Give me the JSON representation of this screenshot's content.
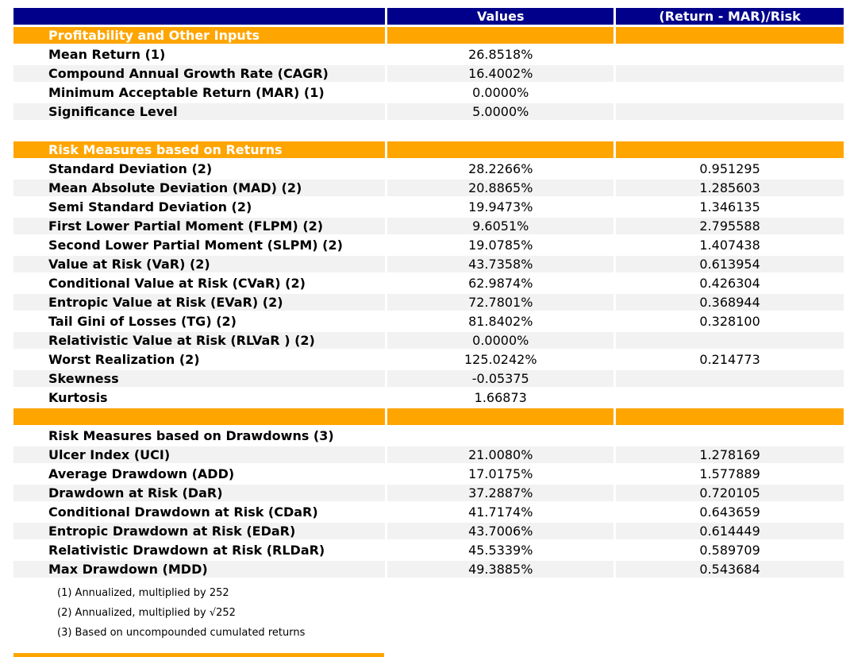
{
  "colors": {
    "header_bg": "#00008B",
    "header_text": "#ffffff",
    "section_bg": "#FFA500",
    "section_text": "#ffffff",
    "stripe_bg": "#F2F2F2",
    "body_text": "#000000"
  },
  "chart_data": {
    "type": "table",
    "title": "",
    "columns": [
      "",
      "Values",
      "(Return - MAR)/Risk"
    ],
    "rows": [
      {
        "t": "section",
        "label": "Profitability and Other Inputs",
        "value": "",
        "ratio": "",
        "shaded": false
      },
      {
        "t": "data",
        "label": "Mean Return (1)",
        "value": "26.8518%",
        "ratio": "",
        "shaded": false
      },
      {
        "t": "data",
        "label": "Compound Annual Growth Rate (CAGR)",
        "value": "16.4002%",
        "ratio": "",
        "shaded": true
      },
      {
        "t": "data",
        "label": "Minimum Acceptable Return (MAR) (1)",
        "value": "0.0000%",
        "ratio": "",
        "shaded": false
      },
      {
        "t": "data",
        "label": "Significance Level",
        "value": "5.0000%",
        "ratio": "",
        "shaded": true
      },
      {
        "t": "spacer",
        "label": "",
        "value": "",
        "ratio": "",
        "shaded": false
      },
      {
        "t": "section",
        "label": "Risk Measures based on Returns",
        "value": "",
        "ratio": "",
        "shaded": false
      },
      {
        "t": "data",
        "label": "Standard Deviation (2)",
        "value": "28.2266%",
        "ratio": "0.951295",
        "shaded": false
      },
      {
        "t": "data",
        "label": "Mean Absolute Deviation (MAD) (2)",
        "value": "20.8865%",
        "ratio": "1.285603",
        "shaded": true
      },
      {
        "t": "data",
        "label": "Semi Standard Deviation (2)",
        "value": "19.9473%",
        "ratio": "1.346135",
        "shaded": false
      },
      {
        "t": "data",
        "label": "First Lower Partial Moment (FLPM) (2)",
        "value": "9.6051%",
        "ratio": "2.795588",
        "shaded": true
      },
      {
        "t": "data",
        "label": "Second Lower Partial Moment (SLPM) (2)",
        "value": "19.0785%",
        "ratio": "1.407438",
        "shaded": false
      },
      {
        "t": "data",
        "label": "Value at Risk (VaR) (2)",
        "value": "43.7358%",
        "ratio": "0.613954",
        "shaded": true
      },
      {
        "t": "data",
        "label": "Conditional Value at Risk (CVaR) (2)",
        "value": "62.9874%",
        "ratio": "0.426304",
        "shaded": false
      },
      {
        "t": "data",
        "label": "Entropic Value at Risk (EVaR) (2)",
        "value": "72.7801%",
        "ratio": "0.368944",
        "shaded": true
      },
      {
        "t": "data",
        "label": "Tail Gini of Losses (TG) (2)",
        "value": "81.8402%",
        "ratio": "0.328100",
        "shaded": false
      },
      {
        "t": "data",
        "label": "Relativistic Value at Risk (RLVaR ) (2)",
        "value": "0.0000%",
        "ratio": "",
        "shaded": true
      },
      {
        "t": "data",
        "label": "Worst Realization (2)",
        "value": "125.0242%",
        "ratio": "0.214773",
        "shaded": false
      },
      {
        "t": "data",
        "label": "Skewness",
        "value": "-0.05375",
        "ratio": "",
        "shaded": true
      },
      {
        "t": "data",
        "label": "Kurtosis",
        "value": "1.66873",
        "ratio": "",
        "shaded": false
      },
      {
        "t": "section",
        "label": "",
        "value": "",
        "ratio": "",
        "shaded": false
      },
      {
        "t": "label",
        "label": "Risk Measures based on Drawdowns (3)",
        "value": "",
        "ratio": "",
        "shaded": false
      },
      {
        "t": "data",
        "label": "Ulcer Index (UCI)",
        "value": "21.0080%",
        "ratio": "1.278169",
        "shaded": true
      },
      {
        "t": "data",
        "label": "Average Drawdown (ADD)",
        "value": "17.0175%",
        "ratio": "1.577889",
        "shaded": false
      },
      {
        "t": "data",
        "label": "Drawdown at Risk (DaR)",
        "value": "37.2887%",
        "ratio": "0.720105",
        "shaded": true
      },
      {
        "t": "data",
        "label": "Conditional Drawdown at Risk (CDaR)",
        "value": "41.7174%",
        "ratio": "0.643659",
        "shaded": false
      },
      {
        "t": "data",
        "label": "Entropic Drawdown at Risk (EDaR)",
        "value": "43.7006%",
        "ratio": "0.614449",
        "shaded": true
      },
      {
        "t": "data",
        "label": "Relativistic Drawdown at Risk (RLDaR)",
        "value": "45.5339%",
        "ratio": "0.589709",
        "shaded": false
      },
      {
        "t": "data",
        "label": "Max Drawdown (MDD)",
        "value": "49.3885%",
        "ratio": "0.543684",
        "shaded": true
      }
    ],
    "footnotes": [
      "(1) Annualized, multiplied by 252",
      "(2) Annualized, multiplied by √252",
      "(3) Based on uncompounded cumulated returns"
    ],
    "layout": {
      "legend": "none",
      "grid": "off",
      "columns_align": [
        "left",
        "center",
        "center"
      ],
      "truncated_section_row_at_bottom": true
    }
  }
}
